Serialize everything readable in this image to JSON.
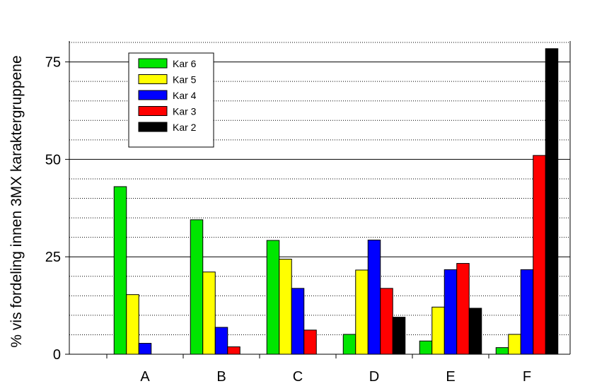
{
  "chart_data": {
    "type": "bar",
    "title": "",
    "xlabel": "",
    "ylabel": "% vis fordeling innen 3MX karaktergruppene",
    "categories": [
      "A",
      "B",
      "C",
      "D",
      "E",
      "F"
    ],
    "ylim": [
      0,
      80
    ],
    "yticks": [
      0,
      25,
      50,
      75
    ],
    "grid": true,
    "legend_position": "top-left",
    "series": [
      {
        "name": "Kar 6",
        "color": "#00e600",
        "values": [
          43.0,
          34.5,
          29.2,
          5.1,
          3.4,
          1.7
        ]
      },
      {
        "name": "Kar 5",
        "color": "#ffff00",
        "values": [
          15.3,
          21.1,
          24.4,
          21.6,
          12.1,
          5.1
        ]
      },
      {
        "name": "Kar 4",
        "color": "#0000ff",
        "values": [
          2.8,
          6.9,
          16.9,
          29.3,
          21.7,
          21.7
        ]
      },
      {
        "name": "Kar 3",
        "color": "#ff0000",
        "values": [
          0,
          1.9,
          6.2,
          16.9,
          23.3,
          51.0
        ]
      },
      {
        "name": "Kar 2",
        "color": "#000000",
        "values": [
          0,
          0,
          0,
          9.5,
          11.8,
          78.4
        ]
      }
    ]
  }
}
